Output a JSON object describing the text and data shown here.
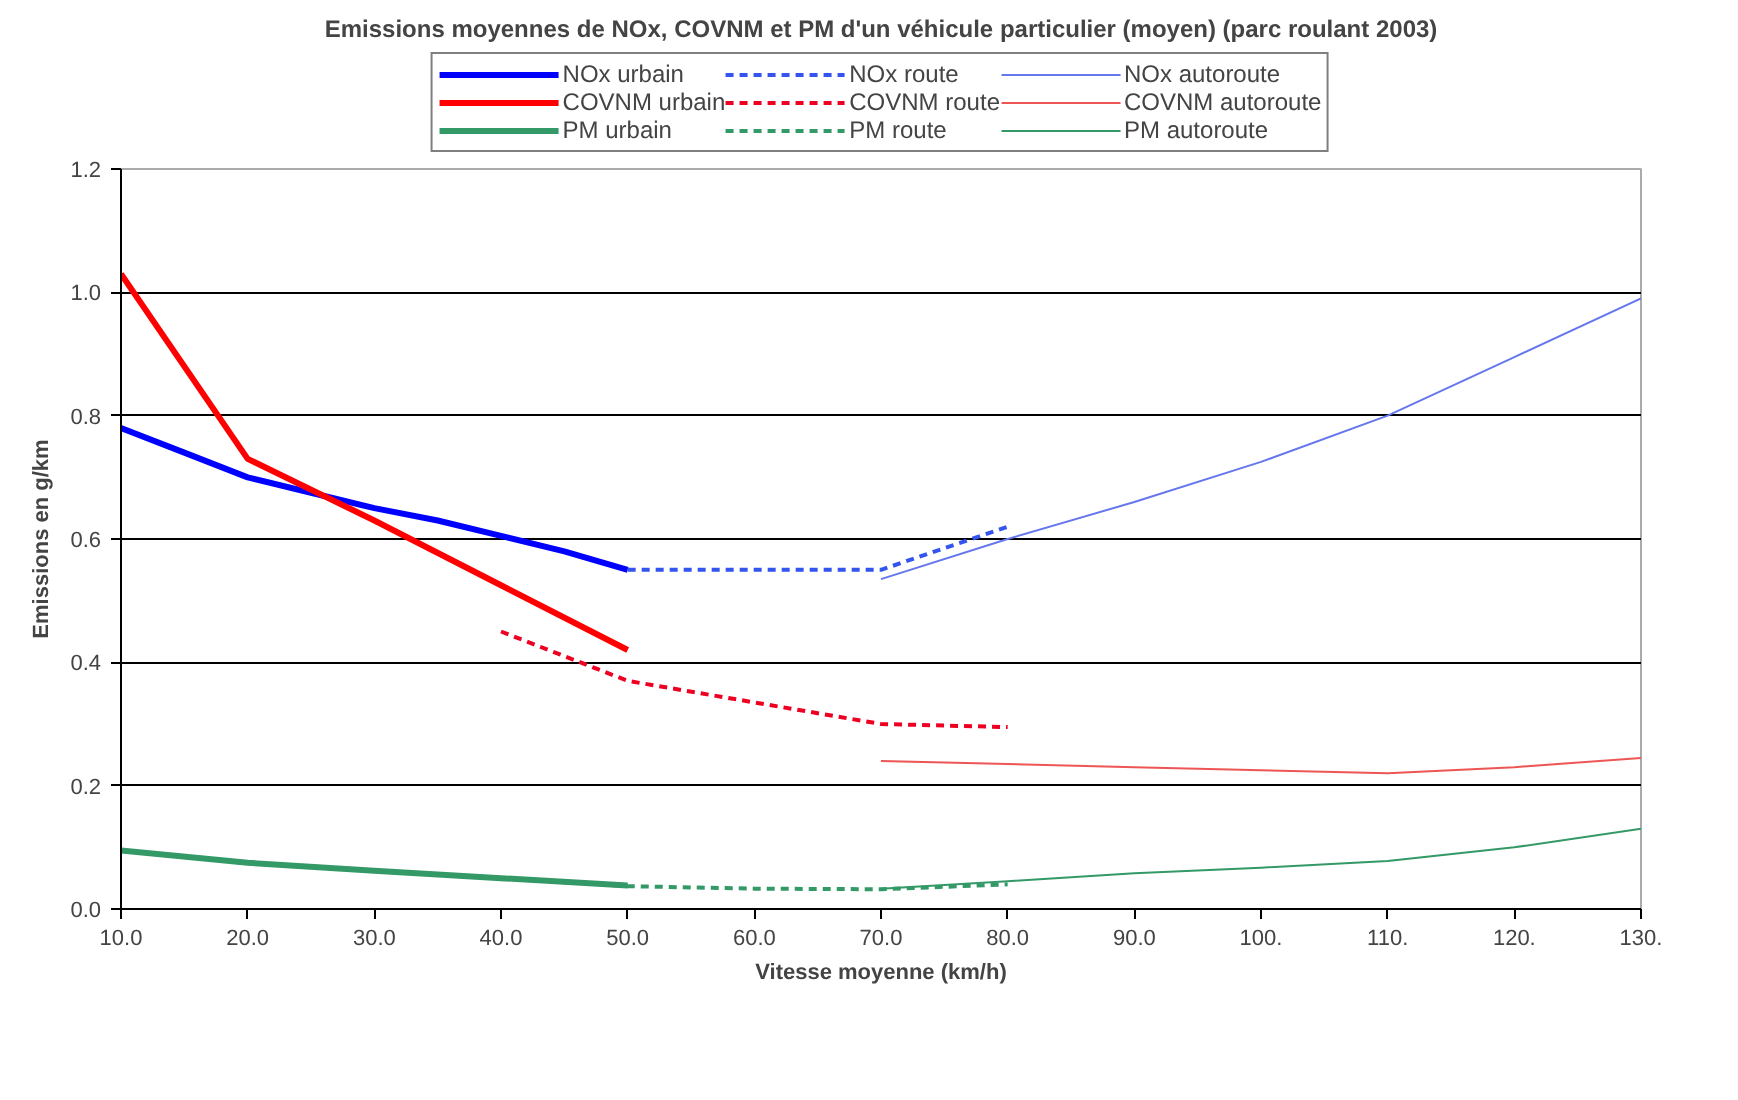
{
  "chart_data": {
    "type": "line",
    "title": "Emissions moyennes de NOx, COVNM et PM d'un véhicule particulier (moyen) (parc roulant 2003)",
    "xlabel": "Vitesse moyenne (km/h)",
    "ylabel": "Emissions en g/km",
    "xlim": [
      10,
      130
    ],
    "ylim": [
      0,
      1.2
    ],
    "xticks": [
      {
        "value": 10,
        "label": "10.0"
      },
      {
        "value": 20,
        "label": "20.0"
      },
      {
        "value": 30,
        "label": "30.0"
      },
      {
        "value": 40,
        "label": "40.0"
      },
      {
        "value": 50,
        "label": "50.0"
      },
      {
        "value": 60,
        "label": "60.0"
      },
      {
        "value": 70,
        "label": "70.0"
      },
      {
        "value": 80,
        "label": "80.0"
      },
      {
        "value": 90,
        "label": "90.0"
      },
      {
        "value": 100,
        "label": "100."
      },
      {
        "value": 110,
        "label": "110."
      },
      {
        "value": 120,
        "label": "120."
      },
      {
        "value": 130,
        "label": "130."
      }
    ],
    "yticks": [
      {
        "value": 0,
        "label": "0.0"
      },
      {
        "value": 0.2,
        "label": "0.2"
      },
      {
        "value": 0.4,
        "label": "0.4"
      },
      {
        "value": 0.6,
        "label": "0.6"
      },
      {
        "value": 0.8,
        "label": "0.8"
      },
      {
        "value": 1.0,
        "label": "1.0"
      },
      {
        "value": 1.2,
        "label": "1.2"
      }
    ],
    "grid": "y",
    "legend": "top",
    "marker": "none",
    "series": [
      {
        "name": "NOx urbain",
        "color": "#0000ff",
        "line_style": "solid",
        "x": [
          10,
          15,
          20,
          25,
          30,
          35,
          40,
          45,
          50
        ],
        "values": [
          0.78,
          0.74,
          0.7,
          0.675,
          0.65,
          0.63,
          0.605,
          0.58,
          0.55
        ]
      },
      {
        "name": "COVNM urbain",
        "color": "#ff0000",
        "line_style": "solid",
        "x": [
          10,
          20,
          30,
          40,
          50
        ],
        "values": [
          1.03,
          0.73,
          0.63,
          0.525,
          0.42
        ]
      },
      {
        "name": "PM urbain",
        "color": "#339966",
        "line_style": "solid",
        "x": [
          10,
          20,
          30,
          40,
          50
        ],
        "values": [
          0.095,
          0.075,
          0.062,
          0.05,
          0.038
        ]
      },
      {
        "name": "NOx route",
        "color": "#3355ee",
        "line_style": "dashed",
        "x": [
          50,
          60,
          70,
          75,
          80
        ],
        "values": [
          0.55,
          0.55,
          0.55,
          0.585,
          0.62
        ]
      },
      {
        "name": "COVNM route",
        "color": "#ee0022",
        "line_style": "dashed",
        "x": [
          40,
          50,
          60,
          70,
          80
        ],
        "values": [
          0.45,
          0.37,
          0.335,
          0.3,
          0.295
        ]
      },
      {
        "name": "PM route",
        "color": "#339966",
        "line_style": "dashed",
        "x": [
          40,
          50,
          60,
          70,
          80
        ],
        "values": [
          0.05,
          0.037,
          0.033,
          0.032,
          0.04
        ]
      },
      {
        "name": "NOx autoroute",
        "color": "#6677ee",
        "line_style": "solid",
        "x": [
          70,
          80,
          90,
          100,
          110,
          120,
          130
        ],
        "values": [
          0.535,
          0.6,
          0.66,
          0.725,
          0.8,
          0.895,
          0.99
        ]
      },
      {
        "name": "COVNM autoroute",
        "color": "#ee5555",
        "line_style": "solid",
        "x": [
          70,
          80,
          90,
          100,
          110,
          120,
          130
        ],
        "values": [
          0.24,
          0.235,
          0.23,
          0.225,
          0.22,
          0.23,
          0.245
        ]
      },
      {
        "name": "PM autoroute",
        "color": "#339966",
        "line_style": "solid",
        "x": [
          70,
          80,
          90,
          100,
          110,
          120,
          130
        ],
        "values": [
          0.033,
          0.045,
          0.058,
          0.067,
          0.078,
          0.1,
          0.13
        ]
      }
    ]
  }
}
